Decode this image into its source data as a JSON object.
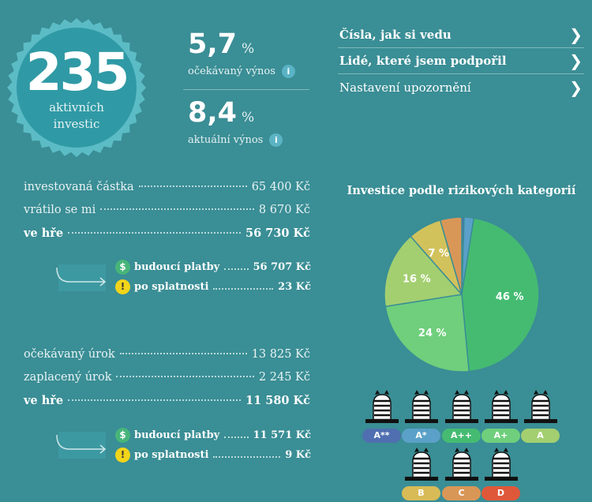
{
  "badge": {
    "count": "235",
    "label_line1": "aktivních",
    "label_line2": "investic"
  },
  "yields": {
    "expected": {
      "value": "5,7",
      "unit": "%",
      "caption": "očekávaný výnos"
    },
    "current": {
      "value": "8,4",
      "unit": "%",
      "caption": "aktuální výnos"
    },
    "info_glyph": "i"
  },
  "menu": {
    "items": [
      {
        "label": "Čísla, jak si vedu"
      },
      {
        "label": "Lidé, které jsem podpořil"
      },
      {
        "label": "Nastavení upozornění"
      }
    ],
    "chevron": "❯"
  },
  "principal": {
    "rows": [
      {
        "label": "investovaná částka",
        "value": "65 400 Kč"
      },
      {
        "label": "vrátilo se mi",
        "value": "8 670 Kč"
      },
      {
        "label": "ve hře",
        "value": "56 730 Kč"
      }
    ],
    "sub": [
      {
        "label": "budoucí platby",
        "value": "56 707 Kč"
      },
      {
        "label": "po splatnosti",
        "value": "23 Kč"
      }
    ]
  },
  "interest": {
    "rows": [
      {
        "label": "očekávaný úrok",
        "value": "13 825 Kč"
      },
      {
        "label": "zaplacený úrok",
        "value": "2 245 Kč"
      },
      {
        "label": "ve hře",
        "value": "11 580 Kč"
      }
    ],
    "sub": [
      {
        "label": "budoucí platby",
        "value": "11 571 Kč"
      },
      {
        "label": "po splatnosti",
        "value": "9 Kč"
      }
    ]
  },
  "icons": {
    "dollar": "$",
    "warning": "!"
  },
  "chart_data": {
    "type": "pie",
    "title": "Investice podle rizikových kategorií",
    "slices": [
      {
        "category": "A**",
        "value": 0.5,
        "label": "",
        "color": "#4f6fb0"
      },
      {
        "category": "A*",
        "value": 2,
        "label": "",
        "color": "#5aa0c8"
      },
      {
        "category": "A++",
        "value": 46,
        "label": "46 %",
        "color": "#45bb72"
      },
      {
        "category": "A+",
        "value": 24,
        "label": "24 %",
        "color": "#6fcf7c"
      },
      {
        "category": "A",
        "value": 16,
        "label": "16 %",
        "color": "#a3cf70"
      },
      {
        "category": "B",
        "value": 7,
        "label": "7 %",
        "color": "#d2c25c"
      },
      {
        "category": "C",
        "value": 4.5,
        "label": "",
        "color": "#d99757"
      }
    ]
  },
  "ratings": [
    {
      "label": "A**",
      "color": "#4f6fb0"
    },
    {
      "label": "A*",
      "color": "#5aa0c8"
    },
    {
      "label": "A++",
      "color": "#45bb72"
    },
    {
      "label": "A+",
      "color": "#6fcf7c"
    },
    {
      "label": "A",
      "color": "#a3cf70"
    },
    {
      "label": "B",
      "color": "#d8bb56"
    },
    {
      "label": "C",
      "color": "#d99757"
    },
    {
      "label": "D",
      "color": "#e0583a"
    }
  ]
}
